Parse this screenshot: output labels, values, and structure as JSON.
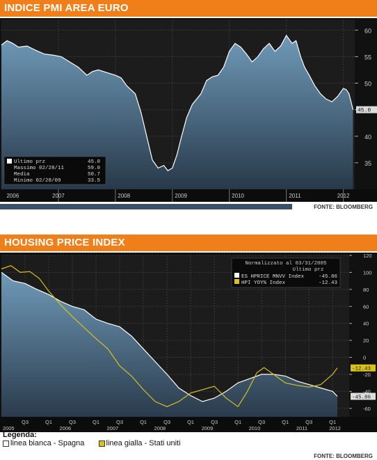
{
  "panel1": {
    "title": "INDICE PMI AREA EURO",
    "source": "FONTE: BLOOMBERG"
  },
  "panel2": {
    "title": "HOUSING PRICE INDEX",
    "source": "FONTE: BLOOMBERG",
    "legend_title": "Legenda:",
    "legend_white": "linea bianca - Spagna",
    "legend_yellow": "linea gialla - Stati uniti"
  },
  "colors": {
    "header": "#f07f1a",
    "plot_bg": "#1c1c1c",
    "area_fill": "#5f8aa6",
    "white_line": "#ffffff",
    "yellow_line": "#d9c21c"
  },
  "chart_data": [
    {
      "type": "area",
      "title": "INDICE PMI AREA EURO",
      "ylim": [
        30,
        62
      ],
      "y_ticks": [
        "60",
        "55",
        "50",
        "45",
        "40",
        "35"
      ],
      "x_labels": [
        "2006",
        "2007",
        "2008",
        "2009",
        "2010",
        "2011",
        "2012"
      ],
      "last_value_label": "45.0",
      "stats": [
        {
          "label": "Ultimo prz",
          "value": "45.0"
        },
        {
          "label": "Massimo 02/28/11",
          "value": "59.0"
        },
        {
          "label": "Media",
          "value": "50.7"
        },
        {
          "label": "Minimo 02/28/09",
          "value": "33.5"
        }
      ],
      "series": [
        {
          "x": [
            2006.0,
            2006.1,
            2006.2,
            2006.3,
            2006.45,
            2006.6,
            2006.75,
            2006.9,
            2007.05,
            2007.2,
            2007.35,
            2007.5,
            2007.6,
            2007.7,
            2007.85,
            2008.0,
            2008.1,
            2008.2,
            2008.35,
            2008.45,
            2008.55,
            2008.65,
            2008.75,
            2008.85,
            2008.92,
            2009.0,
            2009.08,
            2009.15,
            2009.25,
            2009.35,
            2009.5,
            2009.6,
            2009.7,
            2009.8,
            2009.9,
            2010.0,
            2010.1,
            2010.2,
            2010.3,
            2010.4,
            2010.5,
            2010.6,
            2010.7,
            2010.8,
            2010.9,
            2011.0,
            2011.1,
            2011.17,
            2011.25,
            2011.32,
            2011.4,
            2011.5,
            2011.6,
            2011.7,
            2011.8,
            2011.9,
            2012.0,
            2012.05,
            2012.1,
            2012.17
          ],
          "values": [
            57.2,
            58.0,
            57.5,
            56.8,
            57.0,
            56.2,
            55.5,
            55.3,
            55.0,
            54.0,
            53.0,
            51.5,
            52.2,
            52.5,
            52.0,
            51.5,
            51.0,
            49.5,
            48.0,
            44.5,
            40.0,
            35.5,
            34.0,
            34.5,
            33.5,
            34.0,
            36.5,
            39.5,
            43.5,
            46.0,
            48.0,
            50.5,
            51.2,
            51.5,
            53.0,
            56.0,
            57.5,
            56.8,
            55.5,
            54.0,
            55.0,
            56.5,
            57.5,
            56.0,
            57.0,
            59.0,
            57.5,
            58.0,
            55.0,
            53.0,
            51.5,
            49.5,
            48.0,
            47.0,
            46.5,
            47.5,
            49.0,
            48.8,
            48.0,
            45.0
          ]
        }
      ]
    },
    {
      "type": "line",
      "title": "HOUSING PRICE INDEX",
      "ylim": [
        -70,
        120
      ],
      "y_ticks": [
        "120",
        "100",
        "80",
        "60",
        "40",
        "20",
        "0",
        "-20",
        "-40",
        "-60"
      ],
      "x_labels": [
        "Q3",
        "Q1",
        "Q3",
        "Q1",
        "Q3",
        "Q1",
        "Q3",
        "Q1",
        "Q3",
        "Q1",
        "Q3",
        "Q1",
        "Q3",
        "Q1",
        "Q3",
        "Q1"
      ],
      "year_labels": [
        "2005",
        "2006",
        "2007",
        "2008",
        "2009",
        "2010",
        "2011",
        "2012"
      ],
      "info_box": {
        "header1": "Normalizzato al 03/31/2005",
        "header2": "Ultimo prz",
        "rows": [
          {
            "label": "ES HPRICE MNVV Index",
            "value": "-45.86"
          },
          {
            "label": "HPI YOY% Index",
            "value": "-12.43"
          }
        ]
      },
      "end_labels": [
        "-12.43",
        "-45.86"
      ],
      "series": [
        {
          "name": "ES HPRICE MNVV Index",
          "x": [
            2005.0,
            2005.25,
            2005.5,
            2005.75,
            2006.0,
            2006.25,
            2006.5,
            2006.75,
            2007.0,
            2007.25,
            2007.5,
            2007.75,
            2008.0,
            2008.25,
            2008.5,
            2008.75,
            2009.0,
            2009.25,
            2009.5,
            2009.75,
            2010.0,
            2010.25,
            2010.5,
            2010.75,
            2011.0,
            2011.25,
            2011.5,
            2011.75,
            2012.0,
            2012.1
          ],
          "values": [
            100,
            90,
            87,
            80,
            74,
            66,
            60,
            56,
            45,
            40,
            36,
            25,
            10,
            -5,
            -20,
            -36,
            -45,
            -52,
            -48,
            -40,
            -30,
            -25,
            -20,
            -20,
            -22,
            -28,
            -32,
            -36,
            -40,
            -45.86
          ]
        },
        {
          "name": "HPI YOY% Index",
          "x": [
            2005.0,
            2005.2,
            2005.4,
            2005.6,
            2005.8,
            2006.0,
            2006.25,
            2006.5,
            2006.75,
            2007.0,
            2007.25,
            2007.5,
            2007.75,
            2008.0,
            2008.25,
            2008.5,
            2008.75,
            2009.0,
            2009.25,
            2009.5,
            2009.75,
            2010.0,
            2010.2,
            2010.4,
            2010.55,
            2010.75,
            2011.0,
            2011.25,
            2011.5,
            2011.75,
            2012.0,
            2012.1
          ],
          "values": [
            104,
            108,
            100,
            101,
            93,
            78,
            62,
            48,
            35,
            22,
            10,
            -10,
            -22,
            -38,
            -52,
            -58,
            -52,
            -42,
            -38,
            -34,
            -48,
            -58,
            -40,
            -18,
            -12,
            -20,
            -30,
            -33,
            -35,
            -32,
            -20,
            -12.43
          ]
        }
      ]
    }
  ]
}
